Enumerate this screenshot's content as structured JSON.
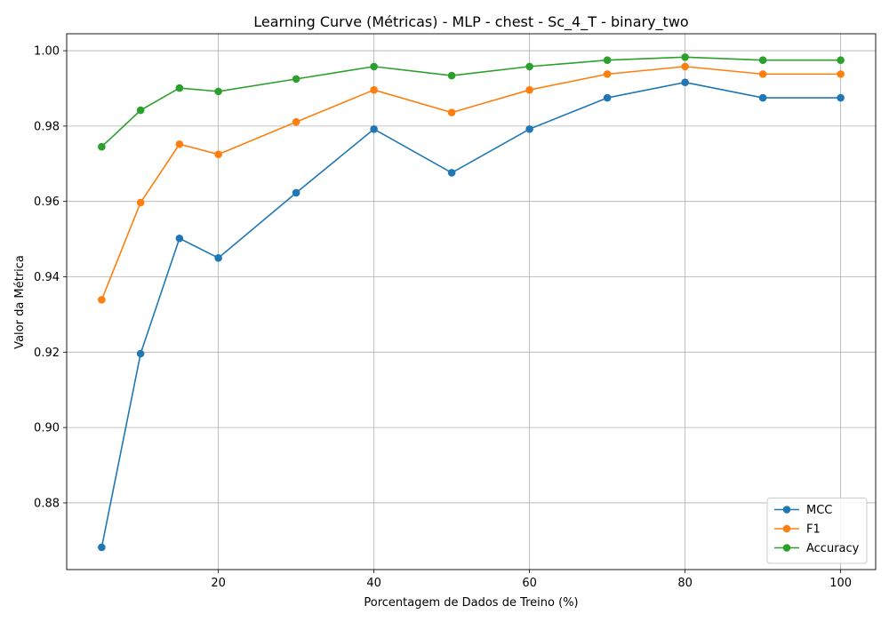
{
  "chart_data": {
    "type": "line",
    "title": "Learning Curve (Métricas) - MLP - chest - Sc_4_T - binary_two",
    "xlabel": "Porcentagem de Dados de Treino (%)",
    "ylabel": "Valor da Métrica",
    "xlim": [
      0.5,
      104.5
    ],
    "ylim": [
      0.8623,
      1.0045
    ],
    "x": [
      5,
      10,
      15,
      20,
      30,
      40,
      50,
      60,
      70,
      80,
      90,
      100
    ],
    "x_ticks": [
      20,
      40,
      60,
      80,
      100
    ],
    "x_tick_labels": [
      "20",
      "40",
      "60",
      "80",
      "100"
    ],
    "y_ticks": [
      0.88,
      0.9,
      0.92,
      0.94,
      0.96,
      0.98,
      1.0
    ],
    "y_tick_labels": [
      "0.88",
      "0.90",
      "0.92",
      "0.94",
      "0.96",
      "0.98",
      "1.00"
    ],
    "grid": true,
    "legend_position": "bottom-right",
    "series": [
      {
        "name": "MCC",
        "color": "#1f77b4",
        "values": [
          0.8682,
          0.9196,
          0.9502,
          0.945,
          0.9623,
          0.9792,
          0.9676,
          0.9792,
          0.9875,
          0.9916,
          0.9875,
          0.9875
        ]
      },
      {
        "name": "F1",
        "color": "#ff7f0e",
        "values": [
          0.9339,
          0.9597,
          0.9752,
          0.9725,
          0.9811,
          0.9896,
          0.9836,
          0.9896,
          0.9938,
          0.9958,
          0.9938,
          0.9938
        ]
      },
      {
        "name": "Accuracy",
        "color": "#2ca02c",
        "values": [
          0.9745,
          0.9842,
          0.9901,
          0.9892,
          0.9925,
          0.9958,
          0.9934,
          0.9958,
          0.9975,
          0.9983,
          0.9975,
          0.9975
        ]
      }
    ]
  }
}
